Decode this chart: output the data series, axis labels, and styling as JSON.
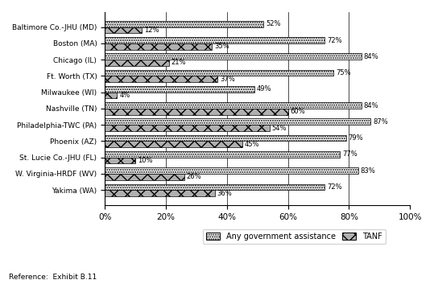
{
  "categories": [
    "Baltimore Co.-JHU (MD)",
    "Boston (MA)",
    "Chicago (IL)",
    "Ft. Worth (TX)",
    "Milwaukee (WI)",
    "Nashville (TN)",
    "Philadelphia-TWC (PA)",
    "Phoenix (AZ)",
    "St. Lucie Co.-JHU (FL)",
    "W. Virginia-HRDF (WV)",
    "Yakima (WA)"
  ],
  "tanf": [
    12,
    35,
    21,
    37,
    4,
    60,
    54,
    45,
    10,
    26,
    36
  ],
  "any_gov": [
    52,
    72,
    84,
    75,
    49,
    84,
    87,
    79,
    77,
    83,
    72
  ],
  "xlabel_ticks": [
    0,
    20,
    40,
    60,
    80,
    100
  ],
  "tick_labels": [
    "0%",
    "20%",
    "40%",
    "60%",
    "80%",
    "100%"
  ],
  "reference_text": "Reference:  Exhibit B.11",
  "legend_any": "Any government assistance",
  "legend_tanf": "TANF",
  "bar_height": 0.38,
  "figsize": [
    5.39,
    3.53
  ],
  "dpi": 100
}
